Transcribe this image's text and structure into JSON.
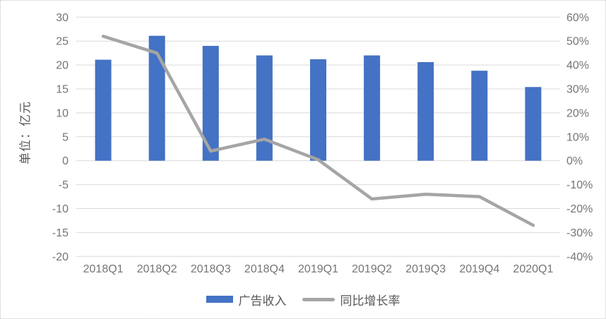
{
  "chart_data": {
    "type": "combo",
    "subtypes": [
      "bar",
      "line"
    ],
    "categories": [
      "2018Q1",
      "2018Q2",
      "2018Q3",
      "2018Q4",
      "2019Q1",
      "2019Q2",
      "2019Q3",
      "2019Q4",
      "2020Q1"
    ],
    "series": [
      {
        "name": "广告收入",
        "type": "bar",
        "axis": "left",
        "color": "#4472C4",
        "values": [
          21.1,
          26.1,
          24.0,
          22.0,
          21.2,
          22.0,
          20.6,
          18.8,
          15.4
        ]
      },
      {
        "name": "同比增长率",
        "type": "line",
        "axis": "right",
        "color": "#A5A5A5",
        "values": [
          52,
          45,
          4,
          9,
          0.4,
          -16,
          -14,
          -15,
          -27
        ],
        "unit": "%"
      }
    ],
    "left_axis": {
      "title": "单位：亿元",
      "min": -20,
      "max": 30,
      "step": 5,
      "tick_labels": [
        "30",
        "25",
        "20",
        "15",
        "10",
        "5",
        "0",
        "-5",
        "-10",
        "-15",
        "-20"
      ],
      "tick_values": [
        30,
        25,
        20,
        15,
        10,
        5,
        0,
        -5,
        -10,
        -15,
        -20
      ]
    },
    "right_axis": {
      "min": -40,
      "max": 60,
      "step": 10,
      "tick_labels": [
        "60%",
        "50%",
        "40%",
        "30%",
        "20%",
        "10%",
        "0%",
        "-10%",
        "-20%",
        "-30%",
        "-40%"
      ],
      "tick_values": [
        60,
        50,
        40,
        30,
        20,
        10,
        0,
        -10,
        -20,
        -30,
        -40
      ]
    },
    "grid": true,
    "legend_position": "bottom",
    "colors": {
      "gridline": "#D9D9D9",
      "tick_text": "#757575",
      "bar": "#4472C4",
      "line": "#A5A5A5"
    }
  }
}
